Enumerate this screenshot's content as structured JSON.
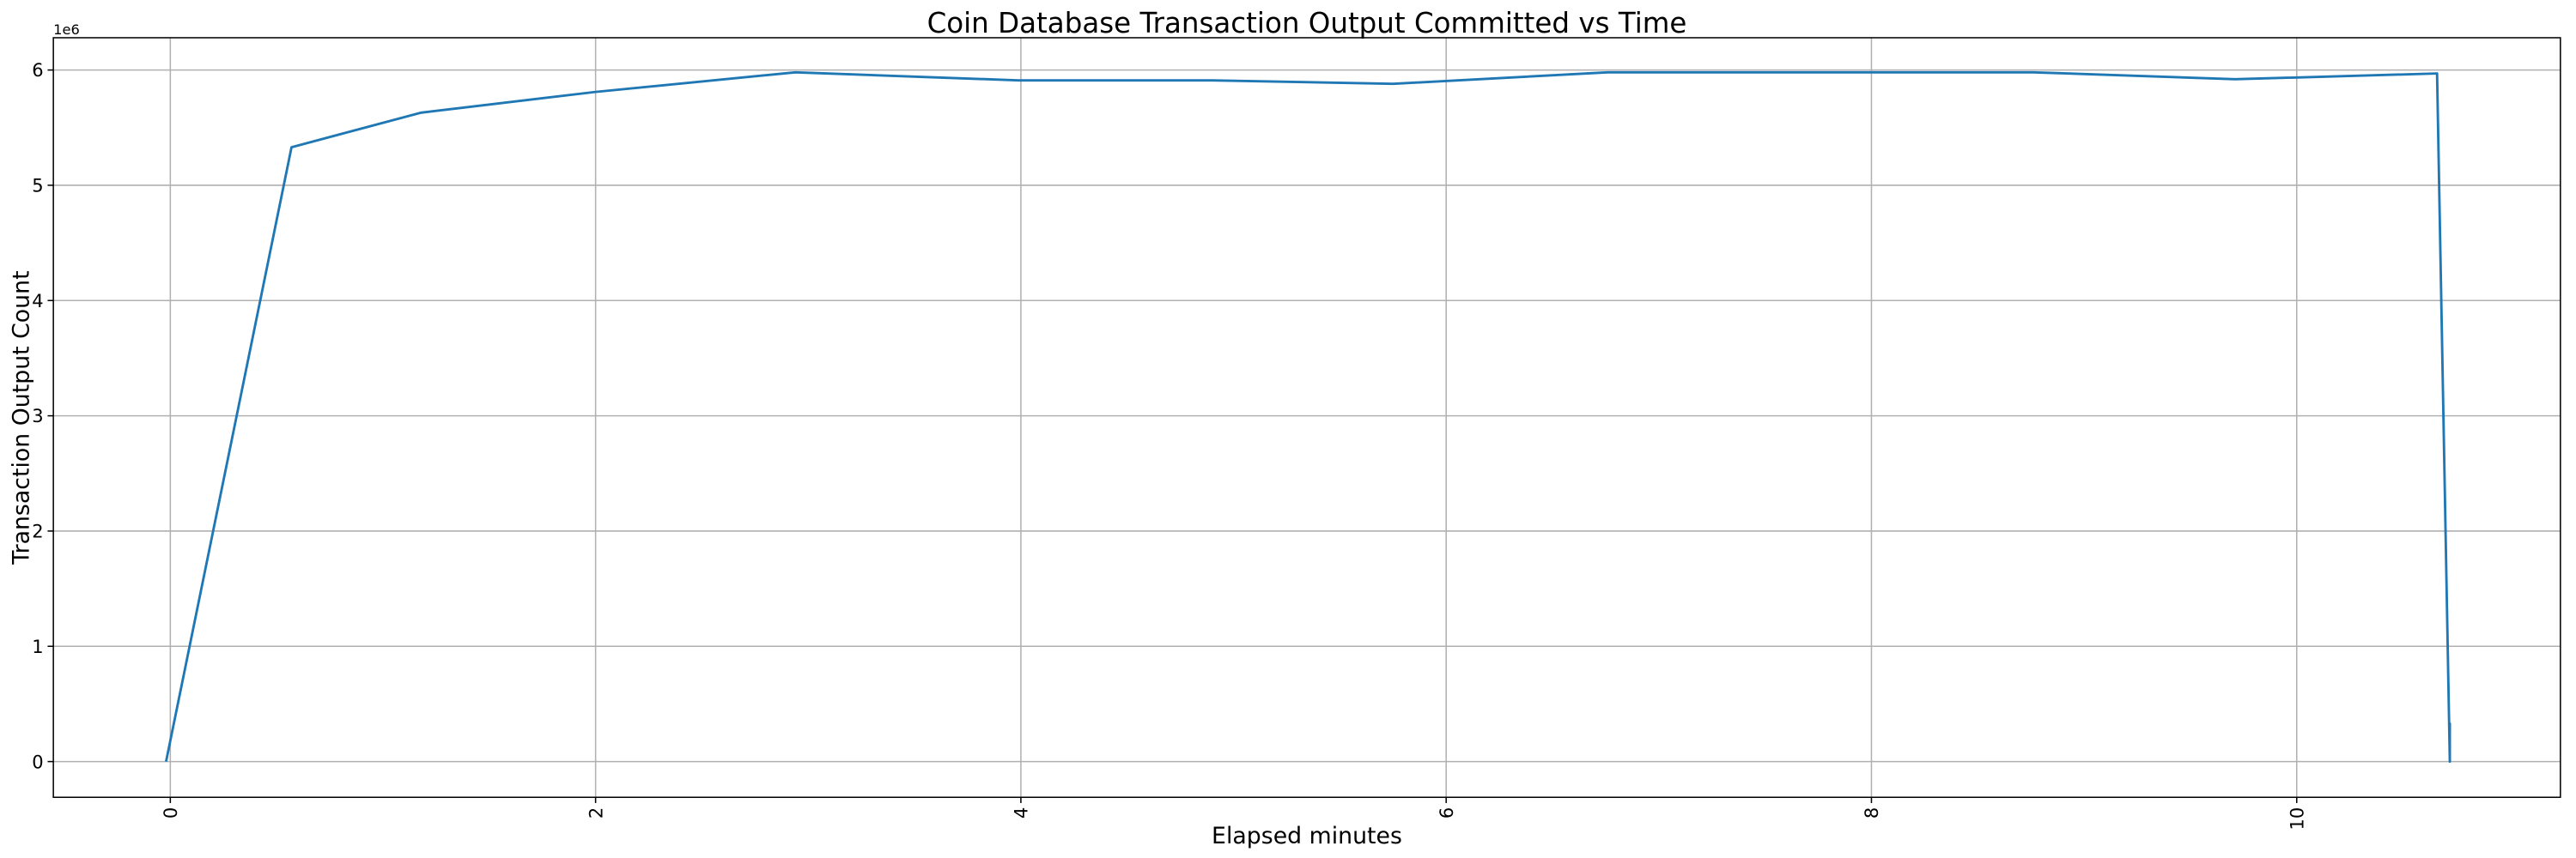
{
  "chart_data": {
    "type": "line",
    "title": "Coin Database Transaction Output Committed vs Time",
    "xlabel": "Elapsed minutes",
    "ylabel": "Transaction Output Count",
    "y_offset_label": "1e6",
    "y_scale": 1000000,
    "xlim": [
      -0.55,
      11.24
    ],
    "ylim": [
      -0.31,
      6.28
    ],
    "x_ticks": [
      0,
      2,
      4,
      6,
      8,
      10
    ],
    "x_tick_labels": [
      "0",
      "2",
      "4",
      "6",
      "8",
      "10"
    ],
    "x_tick_rotation": 90,
    "y_ticks": [
      0,
      1,
      2,
      3,
      4,
      5,
      6
    ],
    "y_tick_labels": [
      "0",
      "1",
      "2",
      "3",
      "4",
      "5",
      "6"
    ],
    "grid": true,
    "series": [
      {
        "color": "#1f77b4",
        "x": [
          -0.02,
          0.57,
          1.18,
          2.0,
          2.94,
          3.99,
          4.9,
          5.75,
          6.76,
          8.76,
          9.71,
          10.66,
          10.72,
          10.72,
          10.72
        ],
        "y": [
          0,
          5.33,
          5.63,
          5.81,
          5.98,
          5.91,
          5.91,
          5.88,
          5.98,
          5.98,
          5.92,
          5.97,
          0,
          0.33,
          0
        ]
      }
    ]
  }
}
